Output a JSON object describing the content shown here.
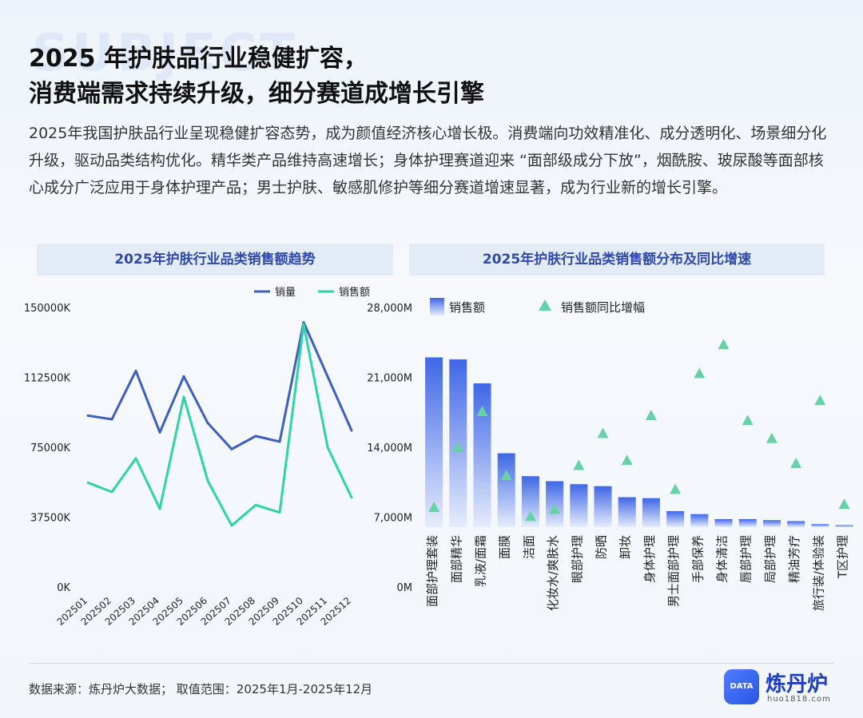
{
  "header": {
    "watermark": "SUBJECT",
    "title_line1": "2025 年护肤品行业稳健扩容，",
    "title_line2": "消费端需求持续升级，细分赛道成增长引擎",
    "description": "2025年我国护肤品行业呈现稳健扩容态势，成为颜值经济核心增长极。消费端向功效精准化、成分透明化、场景细分化升级，驱动品类结构优化。精华类产品维持高速增长；身体护理赛道迎来 “面部级成分下放”，烟酰胺、玻尿酸等面部核心成分广泛应用于身体护理产品；男士护肤、敏感肌修护等细分赛道增速显著，成为行业新的增长引擎。"
  },
  "panels": {
    "left_title": "2025年护肤行业品类销售额趋势",
    "right_title": "2025年护肤行业品类销售额分布及同比增速"
  },
  "colors": {
    "volume": "#3f5fbf",
    "sales": "#2ed5a3",
    "bar_top": "#3f67e6",
    "bar_bottom": "#e6ecfb",
    "triangle": "#67d1a8"
  },
  "chart_data": [
    {
      "type": "line",
      "title": "2025年护肤行业品类销售额趋势",
      "x": [
        "202501",
        "202502",
        "202503",
        "202504",
        "202505",
        "202506",
        "202507",
        "202508",
        "202509",
        "202510",
        "202511",
        "202512"
      ],
      "y_ticks": [
        "0K",
        "37500K",
        "75000K",
        "112500K",
        "150000K"
      ],
      "ylim": [
        0,
        150000
      ],
      "legend_position": "top-right",
      "series": [
        {
          "name": "销量",
          "color": "#3f5fbf",
          "values": [
            92000,
            90000,
            116000,
            83000,
            113000,
            88000,
            74000,
            81000,
            78000,
            142000,
            113000,
            84000
          ]
        },
        {
          "name": "销售额",
          "color": "#2ed5a3",
          "values": [
            56000,
            51000,
            69000,
            42000,
            102000,
            57000,
            33000,
            44000,
            40000,
            141000,
            75000,
            48000
          ]
        }
      ]
    },
    {
      "type": "bar",
      "title": "2025年护肤行业品类销售额分布及同比增速",
      "categories": [
        "面部护理套装",
        "面部精华",
        "乳液/面霜",
        "面膜",
        "洁面",
        "化妆水/爽肤水",
        "眼部护理",
        "防晒",
        "卸妆",
        "身体护理",
        "男士面部护理",
        "手部保养",
        "身体清洁",
        "唇部护理",
        "局部护理",
        "精油芳疗",
        "旅行装/体验装",
        "T区护理"
      ],
      "y_ticks": [
        "0M",
        "7,000M",
        "14,000M",
        "21,000M",
        "28,000M"
      ],
      "ylim": [
        0,
        28000
      ],
      "legend_position": "top-left",
      "series": [
        {
          "name": "销售额",
          "type": "bar",
          "values": [
            23000,
            22800,
            20400,
            13400,
            11100,
            10600,
            10300,
            10100,
            9000,
            8900,
            7600,
            7300,
            6800,
            6800,
            6700,
            6600,
            6300,
            6200
          ]
        },
        {
          "name": "销售额同比增幅",
          "type": "scatter",
          "values": [
            8000,
            14000,
            17600,
            11200,
            7100,
            7800,
            12200,
            15400,
            12700,
            17200,
            9800,
            21400,
            24300,
            16700,
            14900,
            12400,
            18700,
            8300
          ]
        }
      ]
    }
  ],
  "footer": {
    "source": "数据来源：炼丹炉大数据； 取值范围：2025年1月-2025年12月",
    "logo_badge": "DATA",
    "logo_name": "炼丹炉",
    "logo_url": "huo1818.com"
  }
}
